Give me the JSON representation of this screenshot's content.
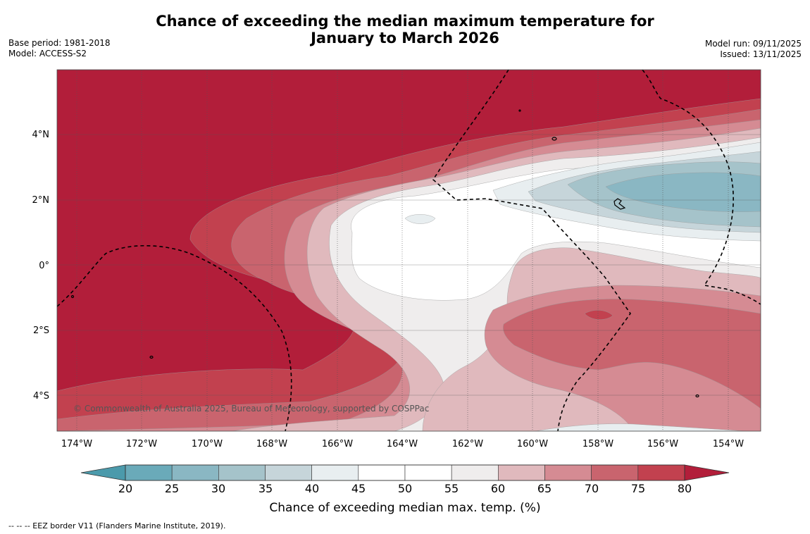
{
  "header": {
    "title_line1": "Chance of exceeding the median maximum temperature for",
    "title_line2": "January to March 2026",
    "base_period": "Base period: 1981-2018",
    "model": "Model: ACCESS-S2",
    "model_run": "Model run: 09/11/2025",
    "issued": "Issued: 13/11/2025"
  },
  "map": {
    "lat_labels": [
      "4°N",
      "2°N",
      "0°",
      "2°S",
      "4°S"
    ],
    "lon_labels": [
      "174°W",
      "172°W",
      "170°W",
      "168°W",
      "166°W",
      "164°W",
      "162°W",
      "160°W",
      "158°W",
      "156°W",
      "154°W"
    ],
    "credit": "© Commonwealth of Australia 2025, Bureau of Meteorology, supported by COSPPac",
    "colors": {
      "c80": "#b21e3a",
      "c75": "#c2414f",
      "c70": "#c9646e",
      "c65": "#d58b93",
      "c60": "#e0b9bd",
      "c55": "#efeded",
      "c50": "#ffffff",
      "c40": "#e8eef0",
      "c35": "#c6d5da",
      "c30": "#a5c3ca",
      "c25": "#8ab7c3"
    }
  },
  "colorbar": {
    "tick_labels": [
      "20",
      "25",
      "30",
      "35",
      "40",
      "45",
      "50",
      "55",
      "60",
      "65",
      "70",
      "75",
      "80"
    ],
    "colors": [
      "#6aaab9",
      "#8ab7c3",
      "#a5c3ca",
      "#c6d5da",
      "#e8eef0",
      "#ffffff",
      "#ffffff",
      "#efeded",
      "#e0b9bd",
      "#d58b93",
      "#c9646e",
      "#c2414f"
    ],
    "under_color": "#4b9aab",
    "over_color": "#b21e3a",
    "title": "Chance of exceeding median max. temp. (%)"
  },
  "footer": {
    "legend": "--  --  -- EEZ border V11 (Flanders Marine Institute, 2019)."
  }
}
